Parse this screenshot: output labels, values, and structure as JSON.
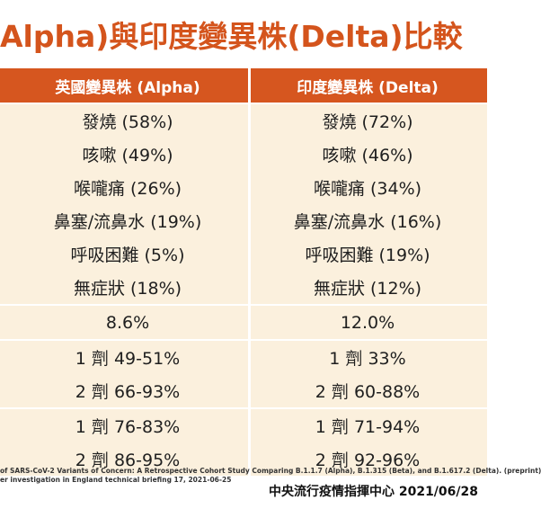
{
  "title": "Alpha)與印度變異株(Delta)比較",
  "headers": {
    "alpha": "英國變異株 (Alpha)",
    "delta": "印度變異株 (Delta)"
  },
  "symptoms": [
    {
      "alpha": "發燒 (58%)",
      "delta": "發燒 (72%)"
    },
    {
      "alpha": "咳嗽 (49%)",
      "delta": "咳嗽 (46%)"
    },
    {
      "alpha": "喉嚨痛 (26%)",
      "delta": "喉嚨痛 (34%)"
    },
    {
      "alpha": "鼻塞/流鼻水 (19%)",
      "delta": "鼻塞/流鼻水 (16%)"
    },
    {
      "alpha": "呼吸困難 (5%)",
      "delta": "呼吸困難 (19%)"
    },
    {
      "alpha": "無症狀 (18%)",
      "delta": "無症狀 (12%)"
    }
  ],
  "rate": {
    "alpha": "8.6%",
    "delta": "12.0%"
  },
  "vaccine_a": [
    {
      "alpha": "1 劑 49-51%",
      "delta": "1 劑 33%"
    },
    {
      "alpha": "2 劑 66-93%",
      "delta": "2 劑 60-88%"
    }
  ],
  "vaccine_b": [
    {
      "alpha": "1 劑 76-83%",
      "delta": "1 劑 71-94%"
    },
    {
      "alpha": "2 劑 86-95%",
      "delta": "2 劑 92-96%"
    }
  ],
  "references": {
    "line1": "of SARS-CoV-2 Variants of Concern: A Retrospective Cohort Study Comparing B.1.1.7 (Alpha), B.1.315 (Beta), and B.1.617.2 (Delta). (preprint)",
    "line2": "er investigation in England technical briefing 17, 2021-06-25"
  },
  "credit": "中央流行疫情指揮中心 2021/06/28"
}
